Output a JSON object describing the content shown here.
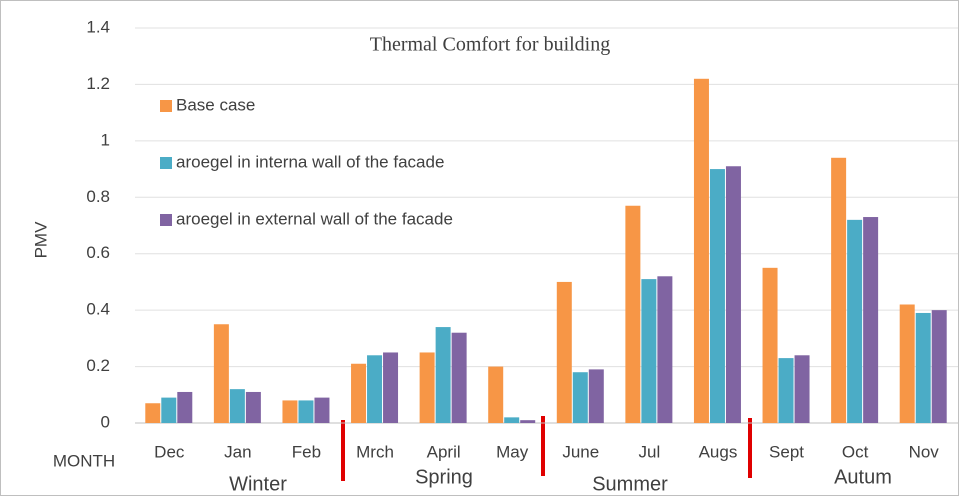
{
  "chart_data": {
    "type": "bar",
    "title": "Thermal Comfort for building",
    "y_label": "PMV",
    "x_label": "MONTH",
    "categories": [
      "Dec",
      "Jan",
      "Feb",
      "Mrch",
      "April",
      "May",
      "June",
      "Jul",
      "Augs",
      "Sept",
      "Oct",
      "Nov"
    ],
    "series": [
      {
        "name": "Base case",
        "color": "#f79646",
        "values": [
          0.07,
          0.35,
          0.08,
          0.21,
          0.25,
          0.2,
          0.5,
          0.77,
          1.22,
          0.55,
          0.94,
          0.42
        ]
      },
      {
        "name": "aroegel  in interna wall of the facade",
        "color": "#4bacc6",
        "values": [
          0.09,
          0.12,
          0.08,
          0.24,
          0.34,
          0.02,
          0.18,
          0.51,
          0.9,
          0.23,
          0.72,
          0.39
        ]
      },
      {
        "name": "aroegel  in external wall of the facade",
        "color": "#8064a2",
        "values": [
          0.11,
          0.11,
          0.09,
          0.25,
          0.32,
          0.01,
          0.19,
          0.52,
          0.91,
          0.24,
          0.73,
          0.4
        ]
      }
    ],
    "annotations": [
      "Winter",
      "Spring",
      "Summer",
      "Autum"
    ],
    "ylim": [
      0,
      1.4
    ],
    "yticks": [
      0,
      0.2,
      0.4,
      0.6,
      0.8,
      1,
      1.2,
      1.4
    ],
    "grid": true,
    "legend": "upper left"
  }
}
